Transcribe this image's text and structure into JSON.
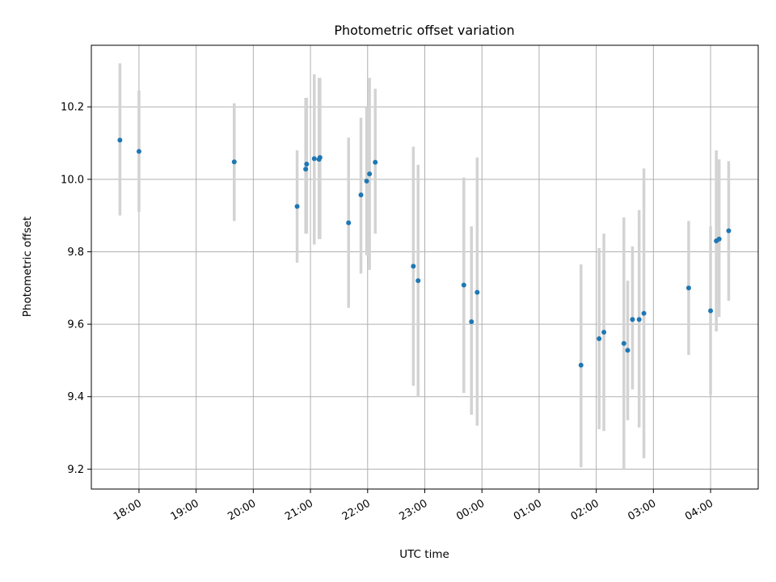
{
  "chart_data": {
    "type": "scatter",
    "title": "Photometric offset variation",
    "xlabel": "UTC time",
    "ylabel": "Photometric offset",
    "grid": true,
    "legend": "none",
    "colors": {
      "points": "#1f77b4",
      "error_bars": "#d3d3d3",
      "grid": "#b0b0b0"
    },
    "x_ticks": [
      "18:00",
      "19:00",
      "20:00",
      "21:00",
      "22:00",
      "23:00",
      "00:00",
      "01:00",
      "02:00",
      "03:00",
      "04:00"
    ],
    "x_tick_hours": [
      18,
      19,
      20,
      21,
      22,
      23,
      24,
      25,
      26,
      27,
      28
    ],
    "xlim": [
      "17:10",
      "28:50"
    ],
    "y_ticks": [
      "9.2",
      "9.4",
      "9.6",
      "9.8",
      "10.0",
      "10.2"
    ],
    "ylim": [
      9.145,
      10.37
    ],
    "series": [
      {
        "points": [
          {
            "time": "17:40",
            "y": 10.108,
            "low": 9.9,
            "high": 10.32
          },
          {
            "time": "18:00",
            "y": 10.077,
            "low": 9.91,
            "high": 10.245
          },
          {
            "time": "19:40",
            "y": 10.048,
            "low": 9.885,
            "high": 10.21
          },
          {
            "time": "20:46",
            "y": 9.925,
            "low": 9.77,
            "high": 10.08
          },
          {
            "time": "20:55",
            "y": 10.028,
            "low": 9.85,
            "high": 10.225
          },
          {
            "time": "20:56",
            "y": 10.042,
            "low": 9.85,
            "high": 10.225
          },
          {
            "time": "21:04",
            "y": 10.057,
            "low": 9.82,
            "high": 10.29
          },
          {
            "time": "21:09",
            "y": 10.055,
            "low": 9.835,
            "high": 10.28
          },
          {
            "time": "21:10",
            "y": 10.06,
            "low": 9.835,
            "high": 10.28
          },
          {
            "time": "21:40",
            "y": 9.88,
            "low": 9.645,
            "high": 10.115
          },
          {
            "time": "21:53",
            "y": 9.957,
            "low": 9.74,
            "high": 10.17
          },
          {
            "time": "21:59",
            "y": 9.995,
            "low": 9.79,
            "high": 10.2
          },
          {
            "time": "22:02",
            "y": 10.015,
            "low": 9.75,
            "high": 10.28
          },
          {
            "time": "22:08",
            "y": 10.047,
            "low": 9.85,
            "high": 10.25
          },
          {
            "time": "22:48",
            "y": 9.76,
            "low": 9.43,
            "high": 10.09
          },
          {
            "time": "22:53",
            "y": 9.72,
            "low": 9.4,
            "high": 10.04
          },
          {
            "time": "23:41",
            "y": 9.708,
            "low": 9.41,
            "high": 10.005
          },
          {
            "time": "23:49",
            "y": 9.607,
            "low": 9.35,
            "high": 9.87
          },
          {
            "time": "23:55",
            "y": 9.688,
            "low": 9.32,
            "high": 10.06
          },
          {
            "time": "01:44",
            "y": 9.487,
            "low": 9.205,
            "high": 9.765
          },
          {
            "time": "02:03",
            "y": 9.56,
            "low": 9.31,
            "high": 9.81
          },
          {
            "time": "02:08",
            "y": 9.578,
            "low": 9.305,
            "high": 9.85
          },
          {
            "time": "02:29",
            "y": 9.547,
            "low": 9.2,
            "high": 9.895
          },
          {
            "time": "02:33",
            "y": 9.528,
            "low": 9.335,
            "high": 9.72
          },
          {
            "time": "02:38",
            "y": 9.613,
            "low": 9.42,
            "high": 9.815
          },
          {
            "time": "02:45",
            "y": 9.613,
            "low": 9.315,
            "high": 9.915
          },
          {
            "time": "02:50",
            "y": 9.63,
            "low": 9.23,
            "high": 10.03
          },
          {
            "time": "03:37",
            "y": 9.7,
            "low": 9.515,
            "high": 9.885
          },
          {
            "time": "04:00",
            "y": 9.637,
            "low": 9.405,
            "high": 9.87
          },
          {
            "time": "04:06",
            "y": 9.83,
            "low": 9.58,
            "high": 10.08
          },
          {
            "time": "04:09",
            "y": 9.835,
            "low": 9.62,
            "high": 10.055
          },
          {
            "time": "04:19",
            "y": 9.858,
            "low": 9.665,
            "high": 10.05
          }
        ]
      }
    ]
  }
}
